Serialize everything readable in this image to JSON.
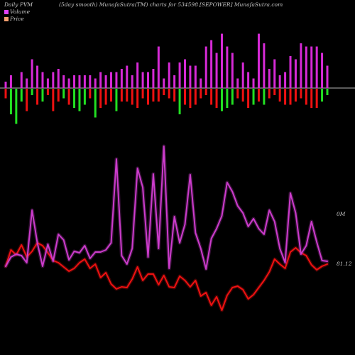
{
  "header": {
    "left": "Daily PVM",
    "center": "(5day smooth) MunafaSutra(TM) charts for 534598",
    "right": "[SEPOWER] MunafaSutra.com"
  },
  "legend": [
    {
      "label": "Volume",
      "color": "#e040fb"
    },
    {
      "label": "Price",
      "color": "#f4a070"
    }
  ],
  "labels": {
    "volume_line": "0M",
    "price_line": "81.12"
  },
  "colors": {
    "background": "#000000",
    "volume_pos": "#d62ad6",
    "price_up": "#22e022",
    "price_down": "#ee1111",
    "volume_line": "#cc3ccc",
    "price_line": "#ee1111",
    "zero_line": "#b4b4b4"
  },
  "chart_data": {
    "type": "line",
    "x": [
      1,
      2,
      3,
      4,
      5,
      6,
      7,
      8,
      9,
      10,
      11,
      12,
      13,
      14,
      15,
      16,
      17,
      18,
      19,
      20,
      21,
      22,
      23,
      24,
      25,
      26,
      27,
      28,
      29,
      30,
      31,
      32,
      33,
      34,
      35,
      36,
      37,
      38,
      39,
      40,
      41,
      42,
      43,
      44,
      45,
      46,
      47,
      48,
      49,
      50,
      51,
      52,
      53,
      54,
      55,
      56,
      57,
      58,
      59,
      60,
      61,
      62
    ],
    "bars": {
      "volume_up": [
        2,
        4,
        0,
        5,
        3,
        9,
        7,
        5,
        3,
        5,
        6,
        4,
        3,
        4,
        4,
        4,
        4,
        3,
        5,
        4,
        5,
        5,
        6,
        7,
        4,
        8,
        5,
        5,
        6,
        13,
        3,
        8,
        4,
        8,
        9,
        7,
        7,
        3,
        13,
        15,
        11,
        17,
        13,
        11,
        3,
        8,
        5,
        3,
        17,
        14,
        6,
        9,
        4,
        5,
        10,
        9,
        14,
        13,
        13,
        13,
        11,
        7
      ],
      "volume_down": [
        1,
        0,
        0,
        0,
        0,
        0,
        0,
        0,
        0,
        0,
        0,
        0,
        0,
        0,
        0,
        0,
        0,
        0,
        0,
        0,
        0,
        0,
        0,
        0,
        0,
        0,
        0,
        0,
        0,
        0,
        0,
        0,
        0,
        0,
        0,
        0,
        0,
        0,
        0,
        0,
        0,
        0,
        0,
        0,
        0,
        0,
        0,
        0,
        0,
        0,
        0,
        0,
        0,
        0,
        0,
        0,
        0,
        0,
        0,
        0,
        0,
        0
      ],
      "price_move": [
        -3,
        -8,
        -11,
        -4,
        -7,
        -2,
        -5,
        -4,
        -2,
        -7,
        -4,
        -3,
        -5,
        -6,
        -7,
        -5,
        -3,
        -9,
        -6,
        -5,
        -4,
        -7,
        -4,
        -4,
        -5,
        -6,
        -3,
        -5,
        -4,
        -4,
        -2,
        -3,
        -4,
        -8,
        -5,
        -6,
        -5,
        -3,
        -2,
        -5,
        -6,
        -7,
        -6,
        -5,
        -3,
        -4,
        -6,
        -5,
        -4,
        -5,
        -3,
        -2,
        -4,
        -5,
        -5,
        -4,
        -3,
        -5,
        -6,
        -6,
        -4,
        -2
      ],
      "price_direction": [
        "down",
        "up",
        "up",
        "up",
        "down",
        "up",
        "down",
        "up",
        "down",
        "down",
        "down",
        "up",
        "down",
        "up",
        "up",
        "up",
        "down",
        "up",
        "down",
        "down",
        "down",
        "up",
        "down",
        "down",
        "down",
        "down",
        "down",
        "down",
        "down",
        "down",
        "down",
        "down",
        "down",
        "up",
        "down",
        "down",
        "down",
        "down",
        "down",
        "down",
        "down",
        "up",
        "up",
        "up",
        "down",
        "down",
        "down",
        "up",
        "down",
        "up",
        "down",
        "down",
        "down",
        "down",
        "down",
        "down",
        "down",
        "down",
        "down",
        "down",
        "up",
        "up"
      ]
    },
    "series": [
      {
        "name": "Volume",
        "values": [
          375,
          362,
          358,
          360,
          370,
          296,
          342,
          375,
          344,
          368,
          330,
          338,
          366,
          354,
          356,
          346,
          364,
          355,
          355,
          352,
          342,
          224,
          360,
          372,
          350,
          237,
          264,
          362,
          245,
          350,
          206,
          378,
          305,
          342,
          316,
          246,
          328,
          350,
          379,
          336,
          322,
          304,
          257,
          270,
          290,
          300,
          319,
          308,
          322,
          330,
          296,
          312,
          350,
          370,
          272,
          300,
          358,
          346,
          312,
          341,
          367,
          368
        ]
      },
      {
        "name": "Price",
        "values": [
          375,
          352,
          359,
          345,
          362,
          354,
          342,
          346,
          356,
          367,
          370,
          376,
          382,
          378,
          370,
          365,
          378,
          372,
          391,
          384,
          400,
          407,
          404,
          405,
          393,
          376,
          395,
          386,
          386,
          401,
          388,
          404,
          405,
          389,
          395,
          404,
          395,
          417,
          412,
          430,
          418,
          437,
          416,
          405,
          403,
          408,
          421,
          415,
          405,
          395,
          383,
          365,
          372,
          378,
          355,
          349,
          356,
          360,
          373,
          380,
          375,
          372
        ]
      }
    ],
    "title": "",
    "xlabel": "",
    "ylabel": ""
  }
}
